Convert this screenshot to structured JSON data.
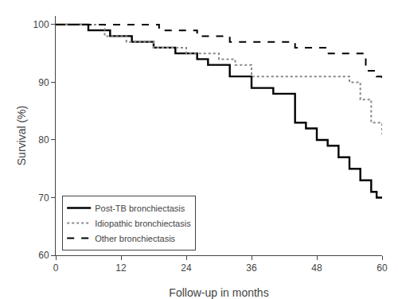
{
  "chart_data": {
    "type": "step",
    "xlabel": "Follow-up in months",
    "ylabel": "Survival (%)",
    "xlim": [
      0,
      60
    ],
    "ylim": [
      60,
      101.5
    ],
    "xticks": [
      0,
      12,
      24,
      36,
      48,
      60
    ],
    "yticks": [
      60,
      70,
      80,
      90,
      100
    ],
    "grid": false,
    "legend": "lower left",
    "series": [
      {
        "name": "Post-TB bronchiectasis",
        "color": "#000000",
        "line_style": "solid",
        "x": [
          0,
          6,
          10,
          14,
          18,
          22,
          26,
          28,
          32,
          36,
          40,
          44,
          46,
          48,
          50,
          52,
          54,
          56,
          58,
          59,
          60
        ],
        "values": [
          100,
          99,
          98,
          97,
          96,
          95,
          94,
          93,
          91,
          89,
          88,
          83,
          82,
          80,
          79,
          77,
          75,
          73,
          71,
          70,
          70
        ]
      },
      {
        "name": "Idiopathic bronchiectasis",
        "color": "#888888",
        "line_style": "dotted",
        "x": [
          0,
          9,
          13,
          18,
          24,
          30,
          33,
          36,
          38,
          44,
          50,
          54,
          56,
          58,
          60
        ],
        "values": [
          100,
          98,
          97,
          96,
          95,
          94,
          93,
          91,
          91,
          91,
          91,
          90,
          87,
          83,
          81
        ]
      },
      {
        "name": "Other bronchiectasis",
        "color": "#000000",
        "line_style": "dashed",
        "x": [
          0,
          13,
          19,
          22,
          26,
          32,
          38,
          44,
          46,
          50,
          54,
          57,
          59,
          60
        ],
        "values": [
          100,
          100,
          99,
          99,
          98,
          97,
          97,
          96,
          96,
          95,
          95,
          92,
          91,
          90
        ]
      }
    ]
  }
}
